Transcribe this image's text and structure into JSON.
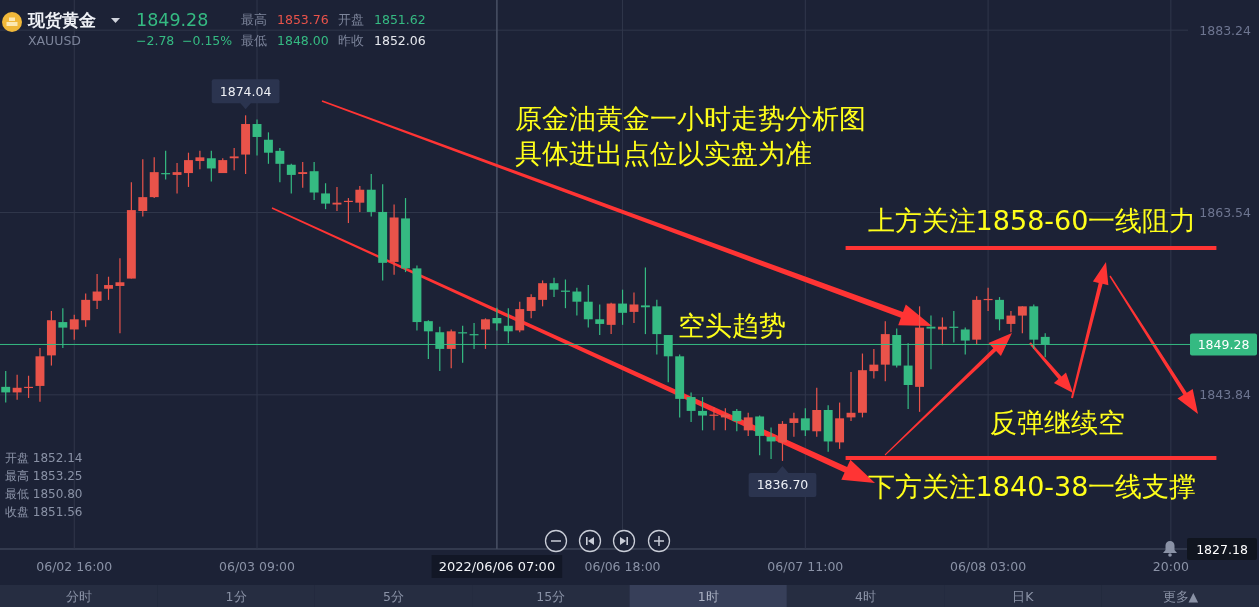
{
  "chart_data": {
    "type": "candlestick",
    "title": "原金油黄金一小时走势分析图",
    "subtitle": "具体进出点位以实盘为准",
    "categories": [
      null,
      null,
      null,
      null,
      null,
      null,
      "06/02 16:00",
      null,
      null,
      null,
      null,
      null,
      null,
      null,
      null,
      null,
      null,
      null,
      null,
      null,
      null,
      null,
      "06/03 09:00",
      null,
      null,
      null,
      null,
      null,
      null,
      null,
      null,
      null,
      null,
      null,
      null,
      null,
      null,
      null,
      null,
      null,
      null,
      null,
      null,
      "2022/06/06 07:00",
      null,
      null,
      null,
      null,
      null,
      null,
      null,
      null,
      null,
      null,
      "06/06 18:00",
      null,
      null,
      null,
      null,
      null,
      null,
      null,
      null,
      null,
      null,
      null,
      null,
      null,
      null,
      null,
      "06/07 11:00",
      null,
      null,
      null,
      null,
      null,
      null,
      null,
      null,
      null,
      null,
      null,
      null,
      null,
      null,
      null,
      "06/08 03:00",
      null,
      null,
      null,
      null,
      null,
      null,
      null,
      null,
      null,
      null,
      null,
      null,
      null,
      null,
      null,
      "20:00",
      null
    ],
    "ohlc": [
      [
        1844.7,
        1846.4,
        1843.0,
        1844.1
      ],
      [
        1844.1,
        1846.0,
        1843.3,
        1844.6
      ],
      [
        1844.6,
        1845.9,
        1843.5,
        1844.7
      ],
      [
        1844.8,
        1848.9,
        1843.1,
        1848.0
      ],
      [
        1848.1,
        1852.9,
        1847.0,
        1851.9
      ],
      [
        1851.7,
        1853.2,
        1848.9,
        1851.1
      ],
      [
        1850.9,
        1852.5,
        1849.8,
        1852.0
      ],
      [
        1851.9,
        1854.8,
        1851.2,
        1854.1
      ],
      [
        1854.0,
        1856.9,
        1853.1,
        1855.0
      ],
      [
        1855.3,
        1856.6,
        1854.1,
        1855.7
      ],
      [
        1855.6,
        1858.6,
        1850.5,
        1856.0
      ],
      [
        1856.4,
        1866.8,
        1856.4,
        1863.8
      ],
      [
        1863.7,
        1869.3,
        1863.1,
        1865.2
      ],
      [
        1865.2,
        1869.5,
        1865.1,
        1867.9
      ],
      [
        1867.8,
        1870.2,
        1867.1,
        1867.7
      ],
      [
        1867.6,
        1868.9,
        1865.6,
        1867.9
      ],
      [
        1867.8,
        1870.0,
        1866.3,
        1869.2
      ],
      [
        1869.1,
        1870.2,
        1868.2,
        1869.5
      ],
      [
        1869.4,
        1870.2,
        1866.9,
        1868.3
      ],
      [
        1867.8,
        1869.4,
        1867.8,
        1869.2
      ],
      [
        1869.4,
        1870.5,
        1868.1,
        1869.6
      ],
      [
        1869.8,
        1874.04,
        1867.7,
        1873.1
      ],
      [
        1873.1,
        1873.6,
        1869.7,
        1871.7
      ],
      [
        1871.4,
        1872.2,
        1868.8,
        1870.0
      ],
      [
        1870.2,
        1870.5,
        1866.8,
        1868.8
      ],
      [
        1868.7,
        1868.8,
        1865.6,
        1867.6
      ],
      [
        1867.7,
        1869.0,
        1866.2,
        1867.9
      ],
      [
        1868.0,
        1869.0,
        1864.9,
        1865.7
      ],
      [
        1865.6,
        1866.7,
        1863.9,
        1864.5
      ],
      [
        1864.4,
        1866.3,
        1863.7,
        1864.6
      ],
      [
        1864.7,
        1865.1,
        1862.4,
        1864.8
      ],
      [
        1864.6,
        1866.4,
        1863.6,
        1866.0
      ],
      [
        1866.0,
        1867.7,
        1863.1,
        1863.6
      ],
      [
        1863.6,
        1866.6,
        1856.2,
        1858.1
      ],
      [
        1858.2,
        1864.4,
        1856.8,
        1863.0
      ],
      [
        1862.9,
        1865.1,
        1857.1,
        1857.5
      ],
      [
        1857.5,
        1857.8,
        1850.8,
        1851.7
      ],
      [
        1851.8,
        1851.9,
        1847.7,
        1850.7
      ],
      [
        1850.6,
        1851.2,
        1846.4,
        1848.8
      ],
      [
        1848.8,
        1850.9,
        1846.7,
        1850.7
      ],
      [
        1850.6,
        1851.3,
        1847.3,
        1850.5
      ],
      [
        1850.4,
        1851.6,
        1848.8,
        1850.3
      ],
      [
        1850.9,
        1852.1,
        1848.8,
        1852.0
      ],
      [
        1852.14,
        1853.25,
        1850.8,
        1851.56
      ],
      [
        1851.3,
        1853.2,
        1849.4,
        1850.7
      ],
      [
        1850.8,
        1853.9,
        1850.6,
        1853.1
      ],
      [
        1852.9,
        1854.7,
        1852.1,
        1854.4
      ],
      [
        1854.1,
        1856.2,
        1853.4,
        1855.9
      ],
      [
        1855.9,
        1856.5,
        1854.4,
        1855.2
      ],
      [
        1855.1,
        1856.3,
        1853.2,
        1855.0
      ],
      [
        1855.0,
        1855.4,
        1852.4,
        1853.9
      ],
      [
        1853.9,
        1855.7,
        1851.1,
        1852.0
      ],
      [
        1852.0,
        1853.6,
        1850.3,
        1851.5
      ],
      [
        1851.4,
        1853.8,
        1850.4,
        1853.7
      ],
      [
        1853.7,
        1855.2,
        1851.4,
        1852.7
      ],
      [
        1852.8,
        1854.9,
        1851.6,
        1853.6
      ],
      [
        1853.5,
        1857.6,
        1850.4,
        1853.3
      ],
      [
        1853.4,
        1854.1,
        1848.2,
        1850.4
      ],
      [
        1850.3,
        1850.3,
        1845.2,
        1848.0
      ],
      [
        1848.0,
        1848.2,
        1841.4,
        1843.4
      ],
      [
        1843.6,
        1844.1,
        1840.9,
        1842.1
      ],
      [
        1842.1,
        1843.6,
        1840.0,
        1841.6
      ],
      [
        1841.6,
        1842.5,
        1840.0,
        1841.7
      ],
      [
        1841.4,
        1842.4,
        1840.0,
        1841.7
      ],
      [
        1842.1,
        1842.3,
        1839.9,
        1841.0
      ],
      [
        1840.0,
        1841.9,
        1839.4,
        1841.4
      ],
      [
        1841.5,
        1841.6,
        1837.3,
        1839.4
      ],
      [
        1839.3,
        1840.3,
        1836.9,
        1838.8
      ],
      [
        1838.7,
        1841.0,
        1836.7,
        1840.7
      ],
      [
        1840.8,
        1841.9,
        1839.3,
        1841.3
      ],
      [
        1841.3,
        1842.4,
        1839.4,
        1840.0
      ],
      [
        1839.9,
        1844.6,
        1839.3,
        1842.2
      ],
      [
        1842.2,
        1842.7,
        1837.7,
        1838.8
      ],
      [
        1838.7,
        1843.0,
        1838.0,
        1841.3
      ],
      [
        1841.4,
        1846.3,
        1841.0,
        1841.9
      ],
      [
        1841.9,
        1848.3,
        1841.4,
        1846.5
      ],
      [
        1846.4,
        1848.8,
        1845.6,
        1847.1
      ],
      [
        1847.1,
        1851.8,
        1845.3,
        1850.4
      ],
      [
        1850.3,
        1851.0,
        1846.8,
        1847.0
      ],
      [
        1847.0,
        1849.4,
        1842.3,
        1844.9
      ],
      [
        1844.7,
        1853.4,
        1842.0,
        1851.1
      ],
      [
        1851.2,
        1852.4,
        1846.6,
        1851.0
      ],
      [
        1850.9,
        1852.2,
        1849.2,
        1851.2
      ],
      [
        1851.2,
        1852.9,
        1849.5,
        1851.1
      ],
      [
        1850.9,
        1851.1,
        1848.2,
        1849.7
      ],
      [
        1849.8,
        1854.5,
        1849.3,
        1854.1
      ],
      [
        1854.1,
        1855.4,
        1852.9,
        1854.2
      ],
      [
        1854.1,
        1854.4,
        1850.8,
        1852.0
      ],
      [
        1851.5,
        1852.9,
        1850.6,
        1852.4
      ],
      [
        1852.4,
        1853.4,
        1850.5,
        1853.4
      ],
      [
        1853.4,
        1853.6,
        1848.8,
        1849.8
      ],
      [
        1850.1,
        1850.5,
        1847.9,
        1849.28
      ],
      null,
      null,
      null,
      null,
      null,
      null,
      null,
      null,
      null,
      null,
      null,
      null
    ],
    "colors": [
      "#35ba82",
      "#e9534a",
      "#e9534a",
      "#e9534a",
      "#e9534a",
      "#35ba82",
      "#e9534a",
      "#e9534a",
      "#e9534a",
      "#e9534a",
      "#e9534a",
      "#e9534a",
      "#e9534a",
      "#e9534a",
      "#35ba82",
      "#e9534a",
      "#e9534a",
      "#e9534a",
      "#35ba82",
      "#e9534a",
      "#e9534a",
      "#e9534a",
      "#35ba82",
      "#35ba82",
      "#35ba82",
      "#35ba82",
      "#e9534a",
      "#35ba82",
      "#35ba82",
      "#e9534a",
      "#e9534a",
      "#e9534a",
      "#35ba82",
      "#35ba82",
      "#e9534a",
      "#35ba82",
      "#35ba82",
      "#35ba82",
      "#35ba82",
      "#e9534a",
      "#35ba82",
      "#35ba82",
      "#e9534a",
      "#35ba82",
      "#35ba82",
      "#e9534a",
      "#e9534a",
      "#e9534a",
      "#35ba82",
      "#35ba82",
      "#35ba82",
      "#35ba82",
      "#35ba82",
      "#e9534a",
      "#35ba82",
      "#e9534a",
      "#35ba82",
      "#35ba82",
      "#35ba82",
      "#35ba82",
      "#35ba82",
      "#35ba82",
      "#e9534a",
      "#e9534a",
      "#35ba82",
      "#e9534a",
      "#35ba82",
      "#35ba82",
      "#e9534a",
      "#e9534a",
      "#35ba82",
      "#e9534a",
      "#35ba82",
      "#e9534a",
      "#e9534a",
      "#e9534a",
      "#e9534a",
      "#e9534a",
      "#35ba82",
      "#35ba82",
      "#e9534a",
      "#35ba82",
      "#e9534a",
      "#35ba82",
      "#35ba82",
      "#e9534a",
      "#e9534a",
      "#35ba82",
      "#e9534a",
      "#e9534a",
      "#35ba82",
      "#35ba82",
      null,
      null,
      null,
      null,
      null,
      null,
      null,
      null,
      null,
      null,
      null,
      null
    ],
    "ylim": [
      1827.18,
      1886.5
    ],
    "yticks": [
      1827.18,
      1843.84,
      1863.54,
      1883.24
    ],
    "grid": true,
    "ref_lines": [
      {
        "axis": "y",
        "value": 1849.28,
        "label": "1849.28",
        "color": "#35ba82"
      },
      {
        "axis": "y",
        "value": 1859.7,
        "label": "上方关注1858-60一线阻力",
        "color": "#ff3434"
      },
      {
        "axis": "y",
        "value": 1837.0,
        "label": "下方关注1840-38一线支撑",
        "color": "#ff3434"
      },
      {
        "axis": "x",
        "value": "2022/06/06 07:00",
        "color": "#4e566b"
      }
    ],
    "annotations": [
      "空头趋势",
      {
        "text": "反弹继续空",
        "y": 1849.28
      },
      {
        "text": "1874.04",
        "y": 1874.04
      },
      {
        "text": "1836.70",
        "y": 1836.7
      },
      "现货黄金",
      "XAUUSD",
      "1849.28",
      "−2.78",
      "−0.15%",
      "最高",
      "1853.76",
      "开盘",
      "1851.62",
      "最低",
      "1848.00",
      "昨收",
      "1852.06",
      "开盘 1852.14",
      "最高 1853.25",
      "最低 1850.80",
      "收盘 1851.56",
      "分时",
      "1分",
      "5分",
      "15分",
      "1时",
      "4时",
      "日K",
      "更多▲"
    ]
  }
}
